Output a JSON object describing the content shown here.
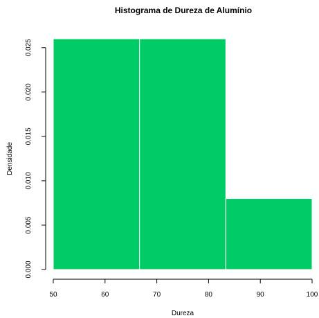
{
  "chart_data": {
    "type": "bar",
    "title": "Histograma de Dureza de Alumínio",
    "xlabel": "Dureza",
    "ylabel": "Densidade",
    "bins": [
      {
        "from": 50,
        "to": 66.67,
        "density": 0.026
      },
      {
        "from": 66.67,
        "to": 83.33,
        "density": 0.026
      },
      {
        "from": 83.33,
        "to": 100,
        "density": 0.008
      }
    ],
    "xlim": [
      50,
      100
    ],
    "ylim": [
      0,
      0.026
    ],
    "xticks": [
      50,
      60,
      70,
      80,
      90,
      100
    ],
    "yticks": [
      "0.000",
      "0.005",
      "0.010",
      "0.015",
      "0.020",
      "0.025"
    ],
    "ytick_values": [
      0,
      0.005,
      0.01,
      0.015,
      0.02,
      0.025
    ],
    "bar_color": "#00CC66",
    "bar_border_color": "#FFFFFF",
    "grid": false,
    "legend": "none"
  }
}
